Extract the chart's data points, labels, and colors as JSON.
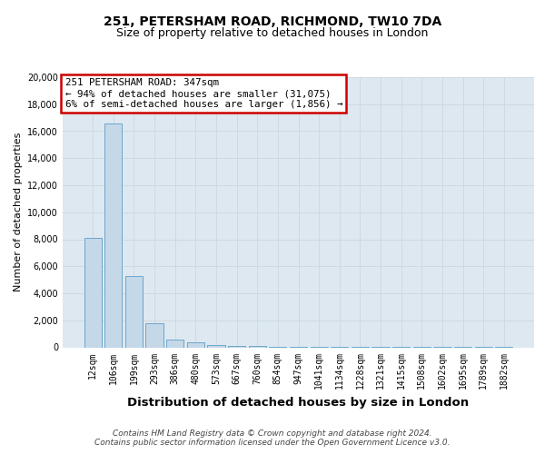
{
  "title_line1": "251, PETERSHAM ROAD, RICHMOND, TW10 7DA",
  "title_line2": "Size of property relative to detached houses in London",
  "xlabel": "Distribution of detached houses by size in London",
  "ylabel": "Number of detached properties",
  "categories": [
    "12sqm",
    "106sqm",
    "199sqm",
    "293sqm",
    "386sqm",
    "480sqm",
    "573sqm",
    "667sqm",
    "760sqm",
    "854sqm",
    "947sqm",
    "1041sqm",
    "1134sqm",
    "1228sqm",
    "1321sqm",
    "1415sqm",
    "1508sqm",
    "1602sqm",
    "1695sqm",
    "1789sqm",
    "1882sqm"
  ],
  "values": [
    8100,
    16600,
    5300,
    1750,
    550,
    350,
    200,
    130,
    80,
    50,
    30,
    18,
    12,
    8,
    6,
    4,
    3,
    2,
    2,
    1,
    1
  ],
  "bar_color": "#c5d8e8",
  "bar_edge_color": "#5a9ec8",
  "annotation_text": "251 PETERSHAM ROAD: 347sqm\n← 94% of detached houses are smaller (31,075)\n6% of semi-detached houses are larger (1,856) →",
  "annotation_box_color": "#ffffff",
  "annotation_box_edge": "#cc0000",
  "ylim": [
    0,
    20000
  ],
  "yticks": [
    0,
    2000,
    4000,
    6000,
    8000,
    10000,
    12000,
    14000,
    16000,
    18000,
    20000
  ],
  "grid_color": "#d0d8e0",
  "bg_color": "#dde8f0",
  "footer_text": "Contains HM Land Registry data © Crown copyright and database right 2024.\nContains public sector information licensed under the Open Government Licence v3.0.",
  "title_fontsize": 10,
  "subtitle_fontsize": 9,
  "xlabel_fontsize": 9.5,
  "ylabel_fontsize": 8,
  "tick_fontsize": 7,
  "footer_fontsize": 6.5,
  "annotation_fontsize": 7.8
}
